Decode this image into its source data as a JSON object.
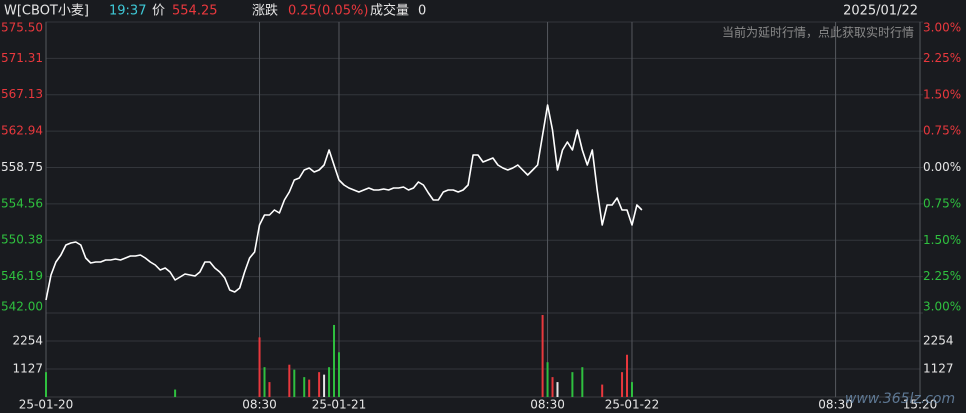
{
  "header": {
    "symbol": "W[CBOT小麦]",
    "time": "19:37",
    "price_label": "价",
    "price": 554.25,
    "change_label": "涨跌",
    "change": "0.25(0.05%)",
    "volume_label": "成交量",
    "volume": 0,
    "date": "2025/01/22"
  },
  "notice": "当前为延时行情，点此获取实时行情",
  "watermark": "www.365lz.com",
  "chart_data": [
    {
      "type": "line",
      "color": "#ffffff",
      "up_color": "#e8383d",
      "down_color": "#2fc03f",
      "flat_color": "#e6e6e6",
      "ylim": [
        542,
        575.5
      ],
      "yticks": [
        {
          "value": 575.5,
          "label": "575.50"
        },
        571.31,
        567.13,
        562.94,
        558.75,
        554.56,
        550.38,
        546.19,
        {
          "value": 542,
          "label": "542.00"
        }
      ],
      "y2lim": [
        -3,
        3
      ],
      "y2ticks": [
        {
          "value": 3,
          "label": "3.00%"
        },
        {
          "value": 2.25,
          "label": "2.25%"
        },
        {
          "value": 1.5,
          "label": "1.50%"
        },
        {
          "value": 0.75,
          "label": "0.75%"
        },
        {
          "value": 0,
          "label": "0.00%"
        },
        {
          "value": -0.75,
          "label": "0.75%"
        },
        {
          "value": -1.5,
          "label": "1.50%"
        },
        {
          "value": -2.25,
          "label": "2.25%"
        },
        {
          "value": -3,
          "label": "3.00%"
        }
      ],
      "x": [
        0,
        1,
        2,
        3,
        4,
        5,
        6,
        7,
        8,
        9,
        10,
        11,
        12,
        13,
        14,
        15,
        16,
        17,
        18,
        19,
        20,
        21,
        22,
        23,
        24,
        25,
        26,
        27,
        28,
        29,
        30,
        31,
        32,
        33,
        34,
        35,
        36,
        37,
        38,
        39,
        40,
        41,
        42,
        43,
        44,
        45,
        46,
        47,
        48,
        49,
        50,
        51,
        52,
        53,
        54,
        55,
        56,
        57,
        58,
        59,
        60,
        61,
        62,
        63,
        64,
        65,
        66,
        67,
        68,
        69,
        70,
        71,
        72,
        73,
        74,
        75,
        76,
        77,
        78,
        79,
        80,
        81,
        82,
        83,
        84,
        85,
        86,
        87,
        88,
        89,
        90,
        91,
        92,
        93,
        94,
        95,
        96,
        97,
        98,
        99,
        100,
        101,
        102,
        103,
        104,
        105,
        106,
        107,
        108,
        109,
        110,
        111,
        112,
        113,
        114,
        115,
        116,
        117,
        118,
        119,
        120
      ],
      "values": [
        543.5,
        546.37,
        547.87,
        548.68,
        549.83,
        550.06,
        550.17,
        549.83,
        548.33,
        547.76,
        547.87,
        547.87,
        548.1,
        548.1,
        548.22,
        548.1,
        548.33,
        548.56,
        548.56,
        548.68,
        548.33,
        547.87,
        547.53,
        546.95,
        547.18,
        546.72,
        545.8,
        546.14,
        546.49,
        546.37,
        546.26,
        546.72,
        547.87,
        547.87,
        547.18,
        546.72,
        546.03,
        544.65,
        544.42,
        544.88,
        546.72,
        548.33,
        549.02,
        552.13,
        553.28,
        553.28,
        553.86,
        553.51,
        555.01,
        555.93,
        557.31,
        557.54,
        558.46,
        558.69,
        558.23,
        558.46,
        559.04,
        560.76,
        559.04,
        557.31,
        556.74,
        556.39,
        556.16,
        555.93,
        556.16,
        556.39,
        556.16,
        556.16,
        556.27,
        556.16,
        556.39,
        556.39,
        556.51,
        556.16,
        556.39,
        557.08,
        556.74,
        555.81,
        555.01,
        555.01,
        555.93,
        556.16,
        556.16,
        555.93,
        556.16,
        556.74,
        560.19,
        560.19,
        559.38,
        559.61,
        559.84,
        559.04,
        558.69,
        558.46,
        558.69,
        559.04,
        558.46,
        557.89,
        558.46,
        559.04,
        562.49,
        565.95,
        563.07,
        558.46,
        560.76,
        561.69,
        560.76,
        563.07,
        560.76,
        559.04,
        560.76,
        556.16,
        552.13,
        554.43,
        554.43,
        555.24,
        553.86,
        553.86,
        552.13,
        554.43,
        553.86
      ]
    },
    {
      "type": "bar",
      "ylim": [
        0,
        3381
      ],
      "yticks": [
        1127,
        2254
      ],
      "xlim": [
        0,
        176
      ],
      "xticks": [
        {
          "value": 0,
          "label": "25-01-20"
        },
        {
          "value": 43,
          "label": "08:30"
        },
        {
          "value": 59,
          "label": "25-01-21"
        },
        {
          "value": 101,
          "label": "08:30"
        },
        {
          "value": 118,
          "label": "25-01-22"
        },
        {
          "value": 159,
          "label": "08:30"
        },
        {
          "value": 176,
          "label": "15:20"
        }
      ],
      "x": [
        0,
        26,
        43,
        44,
        45,
        49,
        50,
        52,
        53,
        55,
        56,
        57,
        58,
        59,
        100,
        101,
        102,
        103,
        106,
        108,
        112,
        116,
        117,
        118
      ],
      "values": [
        1000,
        300,
        2400,
        1200,
        600,
        1300,
        1100,
        800,
        700,
        1000,
        900,
        1200,
        2900,
        1800,
        3300,
        1400,
        800,
        600,
        1000,
        1200,
        500,
        1000,
        1700,
        600
      ],
      "colors": [
        "#2fc03f",
        "#2fc03f",
        "#e8383d",
        "#2fc03f",
        "#e8383d",
        "#e8383d",
        "#2fc03f",
        "#2fc03f",
        "#e8383d",
        "#e8383d",
        "#e6e6e6",
        "#2fc03f",
        "#2fc03f",
        "#2fc03f",
        "#e8383d",
        "#2fc03f",
        "#e8383d",
        "#e6e6e6",
        "#2fc03f",
        "#2fc03f",
        "#e8383d",
        "#e8383d",
        "#e8383d",
        "#2fc03f"
      ]
    }
  ]
}
